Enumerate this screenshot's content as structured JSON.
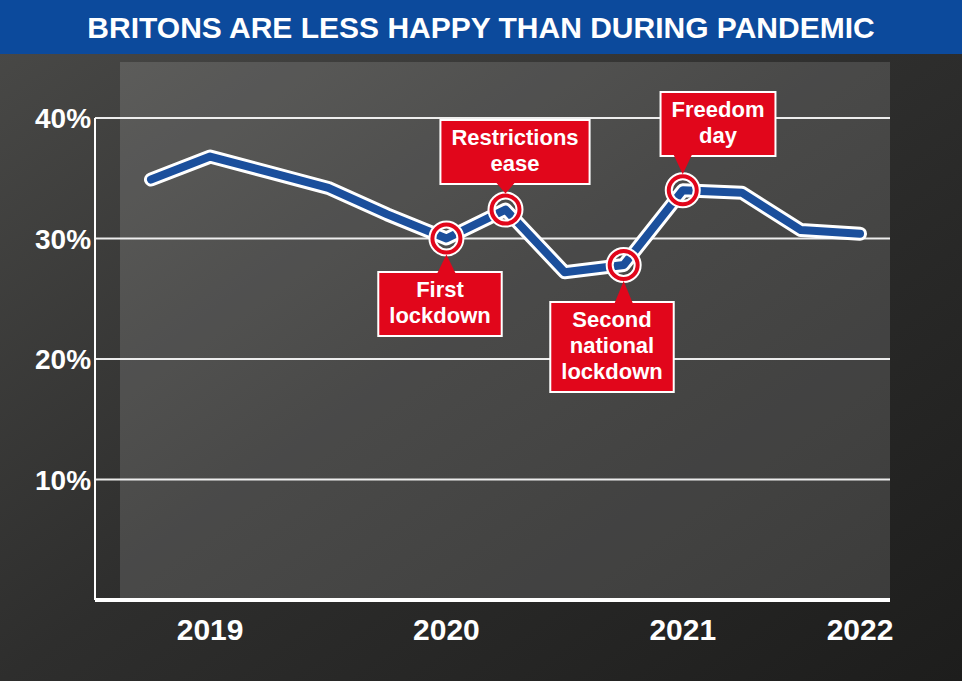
{
  "chart_data": {
    "type": "line",
    "title": "BRITONS ARE LESS HAPPY THAN DURING PANDEMIC",
    "categories": [
      null,
      "2019",
      null,
      null,
      null,
      "2020",
      null,
      null,
      null,
      "2021",
      null,
      null,
      "2022"
    ],
    "values": [
      34.9,
      36.8,
      35.5,
      34.2,
      32.0,
      30.0,
      32.4,
      27.2,
      27.8,
      34.0,
      33.8,
      30.7,
      30.4
    ],
    "color": "#1b4f9c",
    "ylim": [
      0,
      40
    ],
    "yticks": [
      {
        "value": 10,
        "label": "10%"
      },
      {
        "value": 20,
        "label": "20%"
      },
      {
        "value": 30,
        "label": "30%"
      },
      {
        "value": 40,
        "label": "40%"
      }
    ],
    "grid": true,
    "annotations": [
      "First lockdown",
      "Restrictions ease",
      "Second national lockdown",
      "Freedom day"
    ]
  }
}
